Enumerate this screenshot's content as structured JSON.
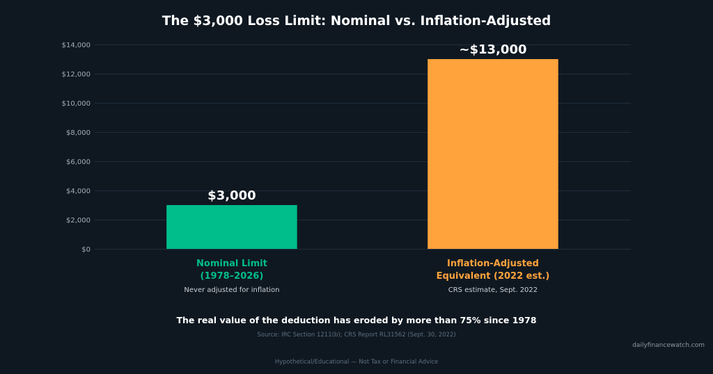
{
  "colors": {
    "background": "#0f1821",
    "title_text": "#ffffff",
    "grid": "#1f2d3a",
    "tick_text": "#a3adb7",
    "note_text": "#c8ced4",
    "muted_text": "#5d6f80",
    "watermark_text": "#8c97a2"
  },
  "chart_data": {
    "type": "bar",
    "title": "The $3,000 Loss Limit: Nominal vs. Inflation-Adjusted",
    "xlabel": "",
    "ylabel": "",
    "categories": [
      [
        "Nominal Limit",
        "(1978–2026)"
      ],
      [
        "Inflation-Adjusted",
        "Equivalent (2022 est.)"
      ]
    ],
    "category_notes": [
      "Never adjusted for inflation",
      "CRS estimate, Sept. 2022"
    ],
    "values": [
      3000,
      13000
    ],
    "value_labels": [
      "$3,000",
      "~$13,000"
    ],
    "bar_colors": [
      "#00bd8c",
      "#ffa33c"
    ],
    "ylim": [
      0,
      14000
    ],
    "yticks": [
      0,
      2000,
      4000,
      6000,
      8000,
      10000,
      12000,
      14000
    ],
    "ytick_labels": [
      "$0",
      "$2,000",
      "$4,000",
      "$6,000",
      "$8,000",
      "$10,000",
      "$12,000",
      "$14,000"
    ],
    "grid": true
  },
  "footer": {
    "takeaway": "The real value of the deduction has eroded by more than 75% since 1978",
    "source": "Source: IRC Section 1211(b); CRS Report RL31562 (Sept. 30, 2022)",
    "watermark": "dailyfinancewatch.com",
    "disclaimer": "Hypothetical/Educational — Not Tax or Financial Advice"
  }
}
